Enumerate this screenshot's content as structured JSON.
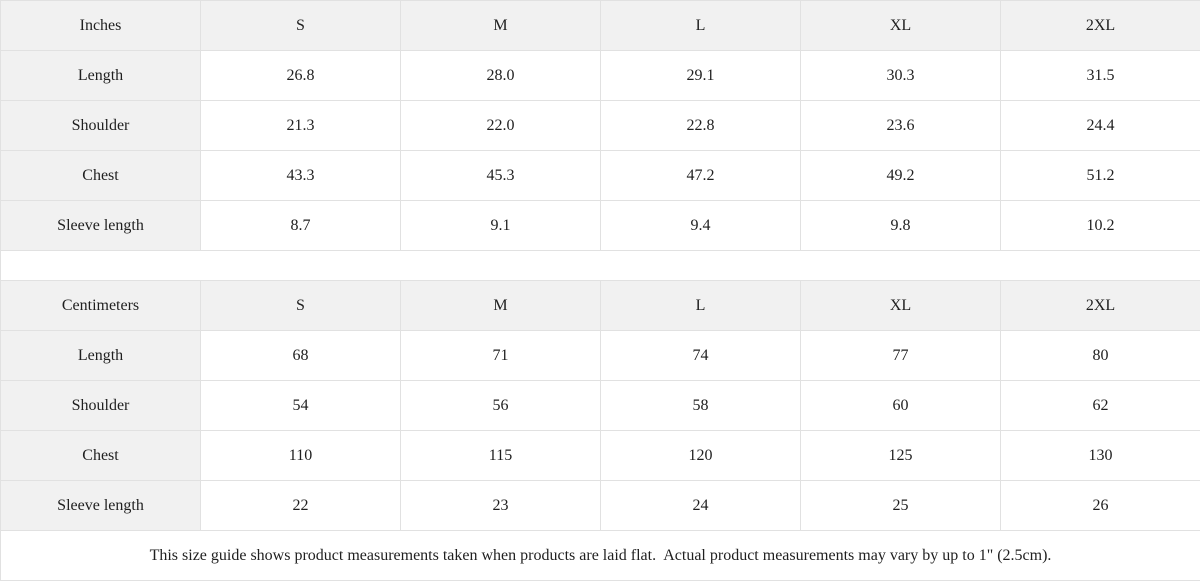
{
  "colors": {
    "cell_shaded_bg": "#f1f1f1",
    "cell_plain_bg": "#ffffff",
    "border": "#e1e1e1",
    "text": "#1f1f1f"
  },
  "size_guide": {
    "inches": {
      "unit_label": "Inches",
      "columns": [
        "S",
        "M",
        "L",
        "XL",
        "2XL"
      ],
      "rows": [
        {
          "label": "Length",
          "values": [
            "26.8",
            "28.0",
            "29.1",
            "30.3",
            "31.5"
          ]
        },
        {
          "label": "Shoulder",
          "values": [
            "21.3",
            "22.0",
            "22.8",
            "23.6",
            "24.4"
          ]
        },
        {
          "label": "Chest",
          "values": [
            "43.3",
            "45.3",
            "47.2",
            "49.2",
            "51.2"
          ]
        },
        {
          "label": "Sleeve length",
          "values": [
            "8.7",
            "9.1",
            "9.4",
            "9.8",
            "10.2"
          ]
        }
      ]
    },
    "centimeters": {
      "unit_label": "Centimeters",
      "columns": [
        "S",
        "M",
        "L",
        "XL",
        "2XL"
      ],
      "rows": [
        {
          "label": "Length",
          "values": [
            "68",
            "71",
            "74",
            "77",
            "80"
          ]
        },
        {
          "label": "Shoulder",
          "values": [
            "54",
            "56",
            "58",
            "60",
            "62"
          ]
        },
        {
          "label": "Chest",
          "values": [
            "110",
            "115",
            "120",
            "125",
            "130"
          ]
        },
        {
          "label": "Sleeve length",
          "values": [
            "22",
            "23",
            "24",
            "25",
            "26"
          ]
        }
      ]
    },
    "footnote": "This size guide shows product measurements taken when products are laid flat.  Actual product measurements may vary by up to 1\" (2.5cm)."
  }
}
